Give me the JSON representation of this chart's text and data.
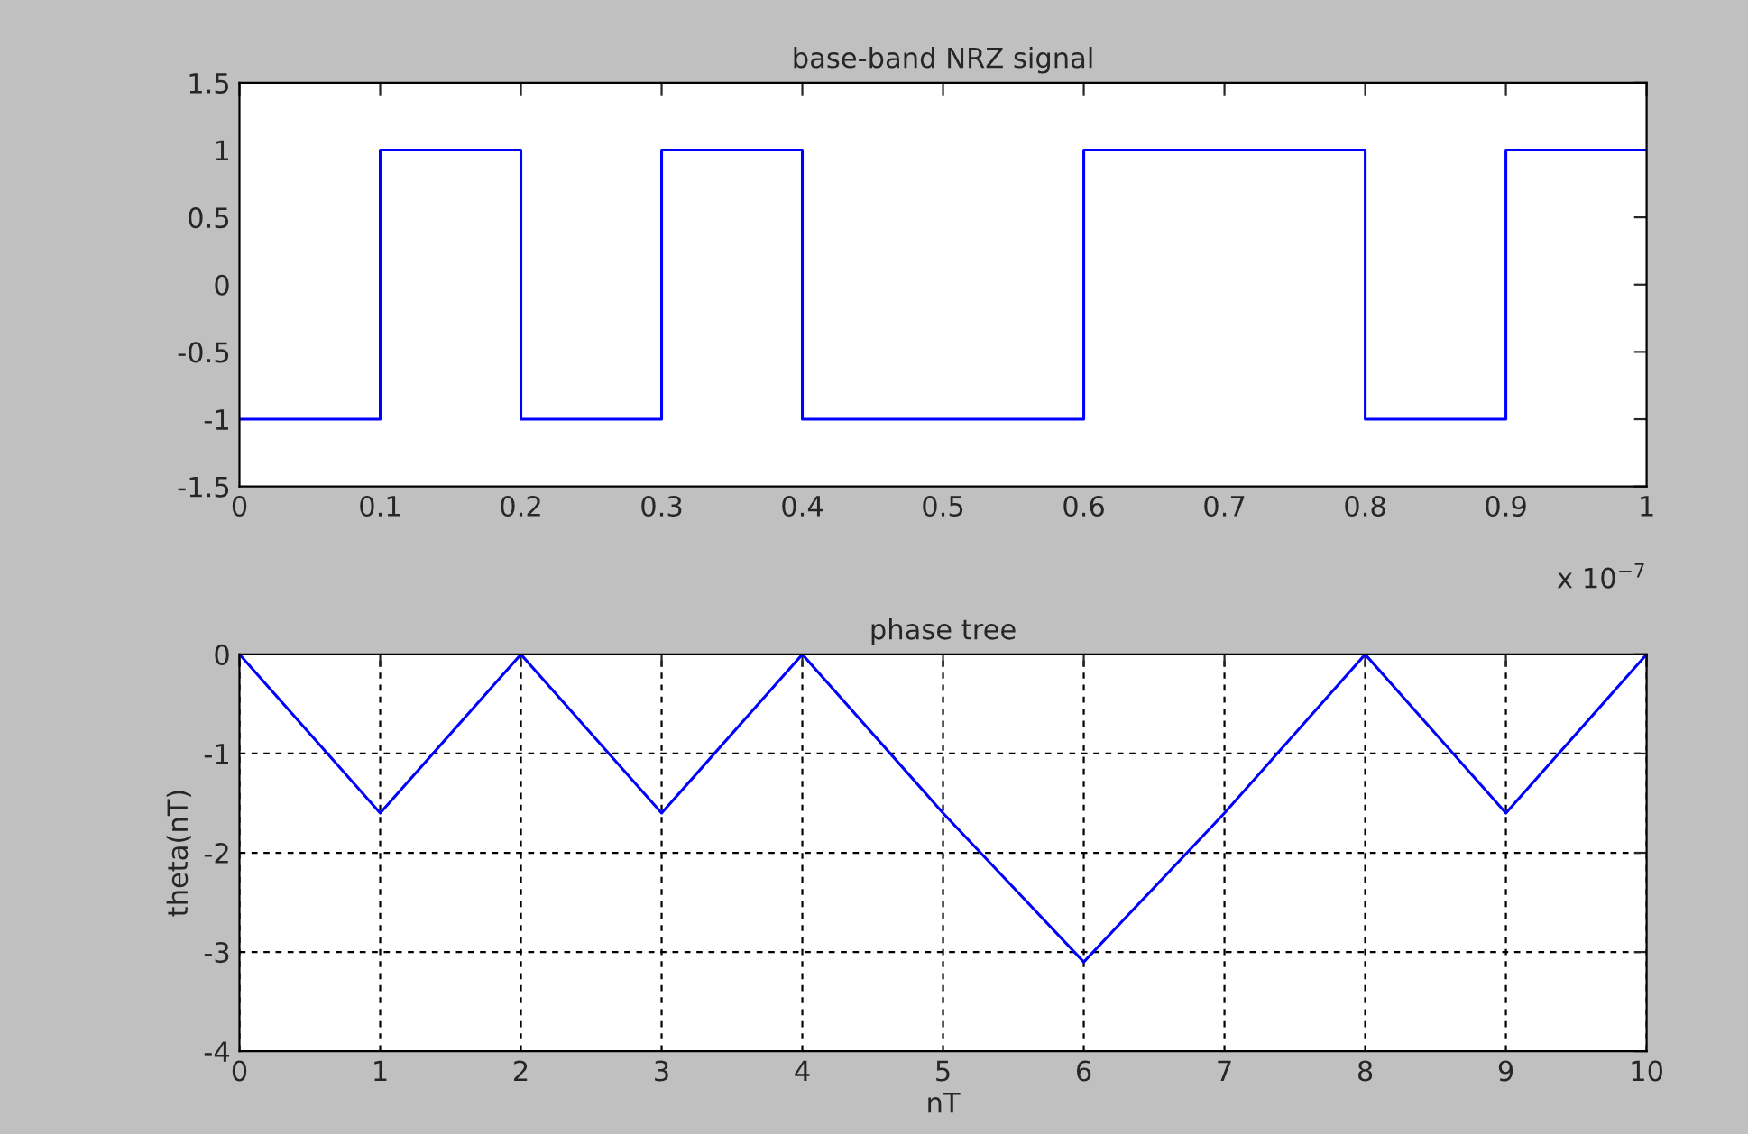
{
  "chart_data": [
    {
      "type": "line",
      "title": "base-band NRZ signal",
      "x": [
        0,
        0.1,
        0.1,
        0.1,
        0.2,
        0.2,
        0.3,
        0.3,
        0.3,
        0.4,
        0.4,
        0.6,
        0.6,
        0.6,
        0.8,
        0.8,
        0.8,
        0.9,
        0.9,
        1
      ],
      "series": [
        {
          "color": "#0000ff",
          "values": [
            -1,
            -1,
            0,
            1,
            1,
            -1,
            -1,
            0,
            1,
            1,
            -1,
            -1,
            0,
            1,
            1,
            0,
            -1,
            -1,
            1,
            1
          ]
        }
      ],
      "xlim": [
        0,
        1
      ],
      "xticks": [
        0,
        0.1,
        0.2,
        0.3,
        0.4,
        0.5,
        0.6,
        0.7,
        0.8,
        0.9,
        1
      ],
      "ylim": [
        -1.5,
        1.5
      ],
      "yticks": [
        -1.5,
        -1,
        -0.5,
        0,
        0.5,
        1,
        1.5
      ],
      "annotations": [
        "x 10$^{−7}$"
      ],
      "grid": false
    },
    {
      "type": "line",
      "title": "phase tree",
      "xlabel": "nT",
      "ylabel": "theta(nT)",
      "x": [
        0,
        1,
        2,
        3,
        4,
        5,
        6,
        7,
        8,
        9,
        10
      ],
      "series": [
        {
          "color": "#0000ff",
          "values": [
            0,
            -1.6,
            0,
            -1.6,
            0,
            -1.6,
            -3.1,
            -1.6,
            0,
            -1.6,
            0
          ]
        }
      ],
      "xlim": [
        0,
        10
      ],
      "xticks": [
        0,
        1,
        2,
        3,
        4,
        5,
        6,
        7,
        8,
        9,
        10
      ],
      "ylim": [
        -4,
        0
      ],
      "yticks": [
        -4,
        -3,
        -2,
        -1,
        0
      ],
      "grid": true
    }
  ]
}
